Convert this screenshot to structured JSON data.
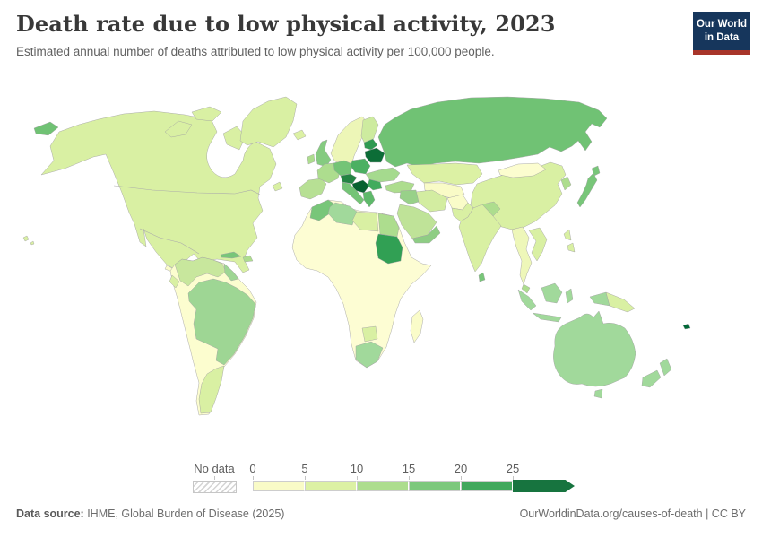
{
  "header": {
    "title": "Death rate due to low physical activity, 2023",
    "subtitle": "Estimated annual number of deaths attributed to low physical activity per 100,000 people."
  },
  "logo": {
    "line1": "Our World",
    "line2": "in Data",
    "bg_color": "#16365c",
    "accent_color": "#a8352a"
  },
  "legend": {
    "no_data_label": "No data"
  },
  "footer": {
    "source_label": "Data source:",
    "source_text": " IHME, Global Burden of Disease (2025)",
    "credit": "OurWorldinData.org/causes-of-death | CC BY"
  },
  "chart_data": {
    "type": "choropleth_map",
    "title": "Death rate due to low physical activity, 2023",
    "unit": "deaths per 100,000 people",
    "year": "2023",
    "legend_ticks": [
      "0",
      "5",
      "10",
      "15",
      "20",
      "25"
    ],
    "legend_bins": [
      {
        "range": "0-5",
        "color": "#f9fbc7"
      },
      {
        "range": "5-10",
        "color": "#dcf1a4"
      },
      {
        "range": "10-15",
        "color": "#addd8e"
      },
      {
        "range": "15-20",
        "color": "#7cc87c"
      },
      {
        "range": "20-25",
        "color": "#41a85c"
      },
      {
        "range": "25+",
        "color": "#17743f"
      }
    ],
    "no_data": {
      "label": "No data",
      "style": "hatched"
    },
    "regions": [
      {
        "id": "north-america",
        "name": "Canada, United States, Mexico, Greenland-adjacent mainland",
        "value_bin": "5-10",
        "color": "#d9f0a3"
      },
      {
        "id": "greenland",
        "name": "Greenland",
        "value_bin": "5-10",
        "color": "#d9f0a3"
      },
      {
        "id": "central-america",
        "name": "Central America",
        "value_bin": "0-5",
        "color": "#fafcc9"
      },
      {
        "id": "cuba",
        "name": "Cuba",
        "value_bin": "15-20",
        "color": "#78c679"
      },
      {
        "id": "hispaniola",
        "name": "Haiti / Dominican Republic",
        "value_bin": "10-15",
        "color": "#addd8e"
      },
      {
        "id": "south-america-base",
        "name": "Peru, Bolivia, Chile, Paraguay",
        "value_bin": "0-5",
        "color": "#fcfdcf"
      },
      {
        "id": "brazil",
        "name": "Brazil",
        "value_bin": "10-15",
        "color": "#9ed694"
      },
      {
        "id": "colombia-venezuela",
        "name": "Colombia / Venezuela",
        "value_bin": "5-10",
        "color": "#c8e79d"
      },
      {
        "id": "guyanas",
        "name": "Guyana / Suriname",
        "value_bin": "10-15",
        "color": "#9ed694"
      },
      {
        "id": "ecuador",
        "name": "Ecuador",
        "value_bin": "5-10",
        "color": "#d9f0a3"
      },
      {
        "id": "argentina",
        "name": "Argentina",
        "value_bin": "5-10",
        "color": "#d9f0a3"
      },
      {
        "id": "africa-base",
        "name": "West, Central & East Africa",
        "value_bin": "0-5",
        "color": "#fdfdd3"
      },
      {
        "id": "morocco",
        "name": "Morocco",
        "value_bin": "15-20",
        "color": "#78c679"
      },
      {
        "id": "algeria",
        "name": "Algeria",
        "value_bin": "10-15",
        "color": "#a1d99b"
      },
      {
        "id": "libya",
        "name": "Libya",
        "value_bin": "5-10",
        "color": "#d9f0a3"
      },
      {
        "id": "egypt",
        "name": "Egypt",
        "value_bin": "10-15",
        "color": "#addd8e"
      },
      {
        "id": "sudan",
        "name": "Sudan",
        "value_bin": "20-25",
        "color": "#31a054"
      },
      {
        "id": "south-africa",
        "name": "South Africa",
        "value_bin": "10-15",
        "color": "#a1d99b"
      },
      {
        "id": "botswana-zimbabwe",
        "name": "Botswana / Zimbabwe",
        "value_bin": "5-10",
        "color": "#d9f0a3"
      },
      {
        "id": "madagascar",
        "name": "Madagascar",
        "value_bin": "0-5",
        "color": "#fafcc9"
      },
      {
        "id": "russia",
        "name": "Russia",
        "value_bin": "15-20",
        "color": "#70c274"
      },
      {
        "id": "scandinavia",
        "name": "Norway / Sweden",
        "value_bin": "0-5",
        "color": "#edf6b7"
      },
      {
        "id": "finland",
        "name": "Finland",
        "value_bin": "5-10",
        "color": "#cdeb9f"
      },
      {
        "id": "iceland",
        "name": "Iceland",
        "value_bin": "5-10",
        "color": "#dcf1a4"
      },
      {
        "id": "uk",
        "name": "United Kingdom",
        "value_bin": "15-20",
        "color": "#85cb80"
      },
      {
        "id": "ireland",
        "name": "Ireland",
        "value_bin": "10-15",
        "color": "#addd8e"
      },
      {
        "id": "iberia",
        "name": "Spain / Portugal",
        "value_bin": "10-15",
        "color": "#b7e094"
      },
      {
        "id": "france",
        "name": "France",
        "value_bin": "10-15",
        "color": "#addd8e"
      },
      {
        "id": "germany",
        "name": "Germany",
        "value_bin": "15-20",
        "color": "#74c476"
      },
      {
        "id": "poland",
        "name": "Poland",
        "value_bin": "20-25",
        "color": "#4bb062"
      },
      {
        "id": "baltics",
        "name": "Estonia / Latvia",
        "value_bin": "20-25",
        "color": "#2f9a52"
      },
      {
        "id": "belarus-lithuania",
        "name": "Belarus / Lithuania",
        "value_bin": "25+",
        "color": "#0c6d37"
      },
      {
        "id": "ukraine",
        "name": "Ukraine",
        "value_bin": "10-15",
        "color": "#a5da8e"
      },
      {
        "id": "czech-austria",
        "name": "Czechia / Austria",
        "value_bin": "20-25",
        "color": "#238443"
      },
      {
        "id": "hungary-balkans",
        "name": "Hungary / Croatia / Serbia",
        "value_bin": "25+",
        "color": "#07612f"
      },
      {
        "id": "romania",
        "name": "Romania",
        "value_bin": "20-25",
        "color": "#41ab5d"
      },
      {
        "id": "balkans-greece",
        "name": "Greece / southern Balkans",
        "value_bin": "15-20",
        "color": "#5eb96a"
      },
      {
        "id": "italy",
        "name": "Italy",
        "value_bin": "15-20",
        "color": "#74c476"
      },
      {
        "id": "turkey",
        "name": "Turkey",
        "value_bin": "10-15",
        "color": "#addd8e"
      },
      {
        "id": "kazakhstan",
        "name": "Kazakhstan",
        "value_bin": "5-10",
        "color": "#dcf1a4"
      },
      {
        "id": "central-asia",
        "name": "Uzbekistan / Turkmenistan",
        "value_bin": "0-5",
        "color": "#f9fbc7"
      },
      {
        "id": "iran",
        "name": "Iran",
        "value_bin": "5-10",
        "color": "#d3eda1"
      },
      {
        "id": "iraq-syria",
        "name": "Iraq / Syria",
        "value_bin": "10-15",
        "color": "#98d189"
      },
      {
        "id": "arabia",
        "name": "Saudi Arabia",
        "value_bin": "10-15",
        "color": "#bfe398"
      },
      {
        "id": "yemen-oman",
        "name": "Yemen / Oman",
        "value_bin": "15-20",
        "color": "#8ecd84"
      },
      {
        "id": "afghanistan",
        "name": "Afghanistan",
        "value_bin": "0-5",
        "color": "#fafcc9"
      },
      {
        "id": "pakistan",
        "name": "Pakistan",
        "value_bin": "5-10",
        "color": "#d9f0a3"
      },
      {
        "id": "india",
        "name": "India",
        "value_bin": "5-10",
        "color": "#d9f0a3"
      },
      {
        "id": "sri-lanka",
        "name": "Sri Lanka",
        "value_bin": "15-20",
        "color": "#78c679"
      },
      {
        "id": "nepal",
        "name": "Nepal",
        "value_bin": "10-15",
        "color": "#addd8e"
      },
      {
        "id": "china",
        "name": "China",
        "value_bin": "5-10",
        "color": "#d9f0a3"
      },
      {
        "id": "mongolia",
        "name": "Mongolia",
        "value_bin": "0-5",
        "color": "#fcfdcf"
      },
      {
        "id": "korea",
        "name": "Korea",
        "value_bin": "10-15",
        "color": "#addd8e"
      },
      {
        "id": "japan",
        "name": "Japan",
        "value_bin": "15-20",
        "color": "#78c679"
      },
      {
        "id": "myanmar-thailand",
        "name": "Myanmar / Thailand",
        "value_bin": "0-5",
        "color": "#eef7b9"
      },
      {
        "id": "vietnam",
        "name": "Vietnam / Laos",
        "value_bin": "5-10",
        "color": "#d9f0a3"
      },
      {
        "id": "malaysia",
        "name": "Malaysia",
        "value_bin": "10-15",
        "color": "#addd8e"
      },
      {
        "id": "indonesia",
        "name": "Indonesia",
        "value_bin": "10-15",
        "color": "#a1d99b"
      },
      {
        "id": "papua-new-guinea",
        "name": "Papua New Guinea",
        "value_bin": "5-10",
        "color": "#d9f0a3"
      },
      {
        "id": "philippines",
        "name": "Philippines",
        "value_bin": "5-10",
        "color": "#d9f0a3"
      },
      {
        "id": "australia",
        "name": "Australia",
        "value_bin": "10-15",
        "color": "#a1d99b"
      },
      {
        "id": "new-zealand",
        "name": "New Zealand",
        "value_bin": "10-15",
        "color": "#a1d99b"
      },
      {
        "id": "fiji",
        "name": "Fiji",
        "value_bin": "25+",
        "color": "#006837"
      }
    ]
  }
}
